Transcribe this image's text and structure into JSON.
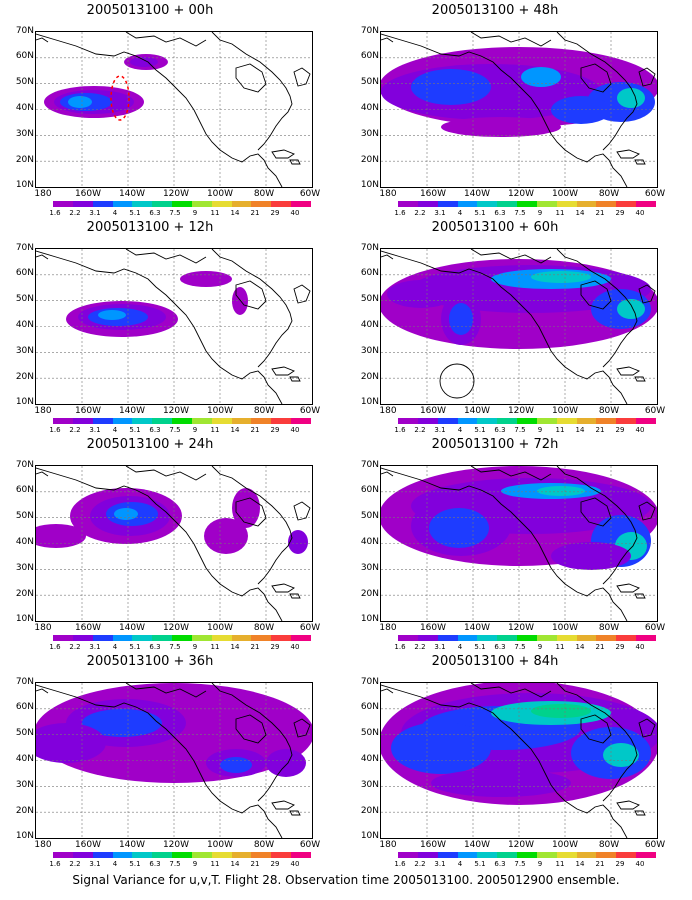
{
  "panels": [
    {
      "title": "2005013100 + 00h",
      "lead": "00h"
    },
    {
      "title": "2005013100 + 48h",
      "lead": "48h"
    },
    {
      "title": "2005013100 + 12h",
      "lead": "12h"
    },
    {
      "title": "2005013100 + 60h",
      "lead": "60h"
    },
    {
      "title": "2005013100 + 24h",
      "lead": "24h"
    },
    {
      "title": "2005013100 + 72h",
      "lead": "72h"
    },
    {
      "title": "2005013100 + 36h",
      "lead": "36h"
    },
    {
      "title": "2005013100 + 84h",
      "lead": "84h"
    }
  ],
  "lat_labels": [
    "70N",
    "60N",
    "50N",
    "40N",
    "30N",
    "20N",
    "10N"
  ],
  "lon_labels": [
    "180",
    "160W",
    "140W",
    "120W",
    "100W",
    "80W",
    "60W"
  ],
  "colorbar": {
    "labels": [
      "1.6",
      "2.2",
      "3.1",
      "4",
      "5.1",
      "6.3",
      "7.5",
      "9",
      "11",
      "14",
      "21",
      "29",
      "40"
    ],
    "colors": [
      "#a000c8",
      "#8200dc",
      "#1e3cff",
      "#0096ff",
      "#00c8c8",
      "#00d28c",
      "#00dc00",
      "#a0e632",
      "#e6dc32",
      "#e6af2d",
      "#f08228",
      "#fa3c3c",
      "#f00082"
    ]
  },
  "caption": "Signal Variance for u,v,T. Flight 28. Observation time 2005013100. 2005012900 ensemble."
}
